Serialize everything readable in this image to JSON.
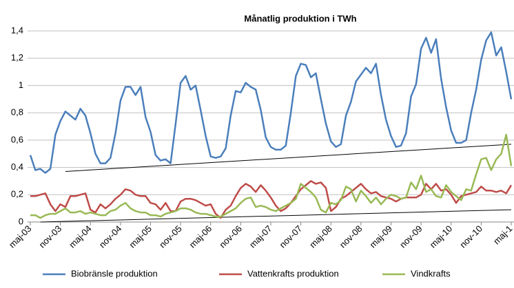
{
  "chart_data": {
    "type": "line",
    "title": "Månatlig  produktion  i  TWh",
    "categories": [
      "maj-03",
      null,
      null,
      null,
      null,
      null,
      "nov-03",
      null,
      null,
      null,
      null,
      null,
      "maj-04",
      null,
      null,
      null,
      null,
      null,
      "nov-04",
      null,
      null,
      null,
      null,
      null,
      "maj-05",
      null,
      null,
      null,
      null,
      null,
      "nov-05",
      null,
      null,
      null,
      null,
      null,
      "maj-06",
      null,
      null,
      null,
      null,
      null,
      "nov-06",
      null,
      null,
      null,
      null,
      null,
      "maj-07",
      null,
      null,
      null,
      null,
      null,
      "nov-07",
      null,
      null,
      null,
      null,
      null,
      "maj-08",
      null,
      null,
      null,
      null,
      null,
      "nov-08",
      null,
      null,
      null,
      null,
      null,
      "maj-09",
      null,
      null,
      null,
      null,
      null,
      "nov-09",
      null,
      null,
      null,
      null,
      null,
      "maj-10",
      null,
      null,
      null,
      null,
      null,
      "nov-10",
      null,
      null,
      null,
      null,
      null,
      "maj-1"
    ],
    "series": [
      {
        "name": "Biobränsle produktion",
        "color": "#4a7ebb",
        "values": [
          0.49,
          0.38,
          0.39,
          0.36,
          0.39,
          0.64,
          0.74,
          0.81,
          0.78,
          0.75,
          0.83,
          0.78,
          0.65,
          0.5,
          0.43,
          0.43,
          0.47,
          0.65,
          0.89,
          0.99,
          0.99,
          0.93,
          0.99,
          0.77,
          0.66,
          0.49,
          0.45,
          0.46,
          0.43,
          0.72,
          1.02,
          1.07,
          0.97,
          1.0,
          0.82,
          0.63,
          0.48,
          0.47,
          0.48,
          0.54,
          0.78,
          0.96,
          0.95,
          1.02,
          0.99,
          0.97,
          0.82,
          0.62,
          0.55,
          0.53,
          0.53,
          0.56,
          0.8,
          1.07,
          1.16,
          1.15,
          1.06,
          1.09,
          0.9,
          0.72,
          0.59,
          0.55,
          0.57,
          0.78,
          0.88,
          1.03,
          1.08,
          1.13,
          1.09,
          1.16,
          0.93,
          0.75,
          0.63,
          0.55,
          0.56,
          0.65,
          0.92,
          1.01,
          1.27,
          1.35,
          1.24,
          1.34,
          1.05,
          0.84,
          0.67,
          0.58,
          0.58,
          0.6,
          0.8,
          0.97,
          1.19,
          1.33,
          1.39,
          1.22,
          1.28,
          1.1,
          0.9
        ]
      },
      {
        "name": "Vattenkrafts produktion",
        "color": "#be4b48",
        "values": [
          0.19,
          0.19,
          0.2,
          0.21,
          0.13,
          0.08,
          0.13,
          0.11,
          0.19,
          0.19,
          0.2,
          0.21,
          0.09,
          0.07,
          0.13,
          0.1,
          0.13,
          0.17,
          0.2,
          0.24,
          0.23,
          0.2,
          0.19,
          0.19,
          0.14,
          0.13,
          0.09,
          0.14,
          0.08,
          0.08,
          0.15,
          0.17,
          0.17,
          0.16,
          0.14,
          0.12,
          0.13,
          0.06,
          0.03,
          0.09,
          0.12,
          0.19,
          0.25,
          0.28,
          0.26,
          0.22,
          0.27,
          0.23,
          0.18,
          0.12,
          0.08,
          0.1,
          0.14,
          0.19,
          0.24,
          0.27,
          0.3,
          0.28,
          0.29,
          0.25,
          0.08,
          0.11,
          0.17,
          0.19,
          0.22,
          0.25,
          0.28,
          0.24,
          0.21,
          0.22,
          0.19,
          0.18,
          0.17,
          0.15,
          0.17,
          0.18,
          0.18,
          0.18,
          0.2,
          0.28,
          0.24,
          0.28,
          0.23,
          0.24,
          0.2,
          0.14,
          0.19,
          0.2,
          0.21,
          0.22,
          0.26,
          0.23,
          0.23,
          0.22,
          0.23,
          0.21,
          0.27
        ]
      },
      {
        "name": "Vindkrafts",
        "color": "#98b954",
        "values": [
          0.05,
          0.05,
          0.03,
          0.05,
          0.06,
          0.06,
          0.08,
          0.1,
          0.07,
          0.07,
          0.08,
          0.06,
          0.07,
          0.06,
          0.05,
          0.05,
          0.08,
          0.09,
          0.12,
          0.14,
          0.1,
          0.08,
          0.07,
          0.07,
          0.05,
          0.05,
          0.04,
          0.06,
          0.07,
          0.08,
          0.1,
          0.1,
          0.09,
          0.07,
          0.06,
          0.06,
          0.05,
          0.04,
          0.04,
          0.06,
          0.08,
          0.1,
          0.14,
          0.17,
          0.18,
          0.11,
          0.12,
          0.11,
          0.09,
          0.08,
          0.1,
          0.12,
          0.14,
          0.17,
          0.28,
          0.25,
          0.22,
          0.18,
          0.09,
          0.07,
          0.14,
          0.13,
          0.16,
          0.26,
          0.24,
          0.15,
          0.23,
          0.19,
          0.14,
          0.18,
          0.13,
          0.17,
          0.2,
          0.19,
          0.17,
          0.18,
          0.29,
          0.24,
          0.34,
          0.22,
          0.24,
          0.19,
          0.18,
          0.27,
          0.22,
          0.19,
          0.16,
          0.24,
          0.23,
          0.35,
          0.46,
          0.47,
          0.38,
          0.46,
          0.5,
          0.64,
          0.41
        ]
      }
    ],
    "trendlines": [
      {
        "color": "#000000",
        "x": [
          7,
          96
        ],
        "values": [
          0.37,
          0.57
        ]
      },
      {
        "color": "#000000",
        "x": [
          2,
          96
        ],
        "values": [
          0.0,
          0.09
        ]
      }
    ],
    "ylim": [
      0,
      1.4
    ],
    "yticks": [
      0,
      {
        "value": 0.2,
        "label": "0,2"
      },
      {
        "value": 0.4,
        "label": "0,4"
      },
      {
        "value": 0.6,
        "label": "0,6"
      },
      {
        "value": 0.8,
        "label": "0,8"
      },
      1,
      {
        "value": 1.2,
        "label": "1,2"
      },
      {
        "value": 1.4,
        "label": "1,4"
      }
    ],
    "grid": true
  }
}
